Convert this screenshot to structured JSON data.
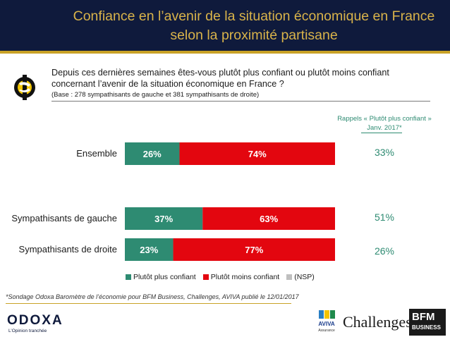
{
  "title_line1": "Confiance en l’avenir de la situation économique en France",
  "title_line2": "selon la proximité partisane",
  "question_line1": "Depuis ces dernières semaines êtes-vous plutôt plus confiant ou plutôt moins confiant",
  "question_line2": "concernant l’avenir de la situation économique en France ?",
  "base": "(Base : 278 sympathisants de gauche et 381 sympathisants de droite)",
  "rappels_line1": "Rappels « Plutôt plus confiant »",
  "rappels_line2": "Janv. 2017*",
  "footnote": "*Sondage Odoxa Baromètre de l’économie pour BFM Business, Challenges, AVIVA publié le 12/01/2017",
  "brand": {
    "odoxa": "ODOXA",
    "odoxa_tagline": "L’Opinion tranchée",
    "aviva": "AVIVA",
    "aviva_sub": "Assurance",
    "challenges": "Challenges",
    "bfm_line1": "BFM",
    "bfm_line2": "BUSINESS"
  },
  "colors": {
    "plus_confiant": "#2e8b72",
    "moins_confiant": "#e3060f",
    "nsp": "#bfbfbf",
    "header_bg": "#0f1a3c",
    "title_gold": "#d9b34a"
  },
  "chart_data": {
    "type": "bar",
    "orientation": "horizontal",
    "stacked": true,
    "categories": [
      "Ensemble",
      "Sympathisants de gauche",
      "Sympathisants de droite"
    ],
    "series": [
      {
        "name": "Plutôt plus confiant",
        "values": [
          26,
          37,
          23
        ],
        "labels": [
          "26%",
          "37%",
          "23%"
        ]
      },
      {
        "name": "Plutôt moins confiant",
        "values": [
          74,
          63,
          77
        ],
        "labels": [
          "74%",
          "63%",
          "77%"
        ]
      },
      {
        "name": "(NSP)",
        "values": [
          0,
          0,
          0
        ],
        "labels": [
          "",
          "",
          ""
        ]
      }
    ],
    "rappels": [
      "33%",
      "51%",
      "26%"
    ],
    "xlim": [
      0,
      100
    ],
    "legend_position": "bottom"
  }
}
